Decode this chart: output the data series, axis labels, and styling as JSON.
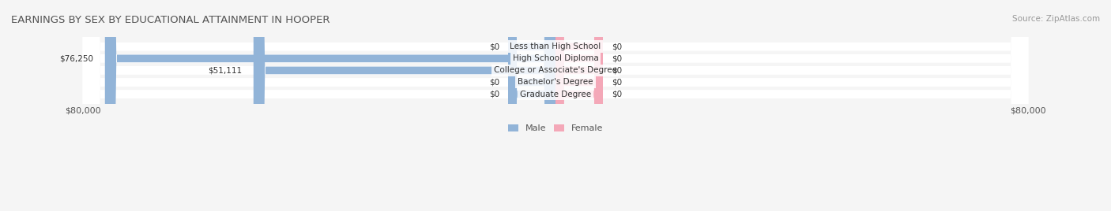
{
  "title": "EARNINGS BY SEX BY EDUCATIONAL ATTAINMENT IN HOOPER",
  "source": "Source: ZipAtlas.com",
  "categories": [
    "Less than High School",
    "High School Diploma",
    "College or Associate's Degree",
    "Bachelor's Degree",
    "Graduate Degree"
  ],
  "male_values": [
    0,
    76250,
    51111,
    0,
    0
  ],
  "female_values": [
    0,
    0,
    0,
    0,
    0
  ],
  "male_color": "#92b4d8",
  "female_color": "#f4a8b8",
  "bar_bg_color": "#e8eaf0",
  "max_val": 80000,
  "bg_color": "#f5f5f5",
  "title_fontsize": 9.5,
  "source_fontsize": 7.5,
  "label_fontsize": 7.5,
  "axis_label_fontsize": 8,
  "legend_fontsize": 8
}
